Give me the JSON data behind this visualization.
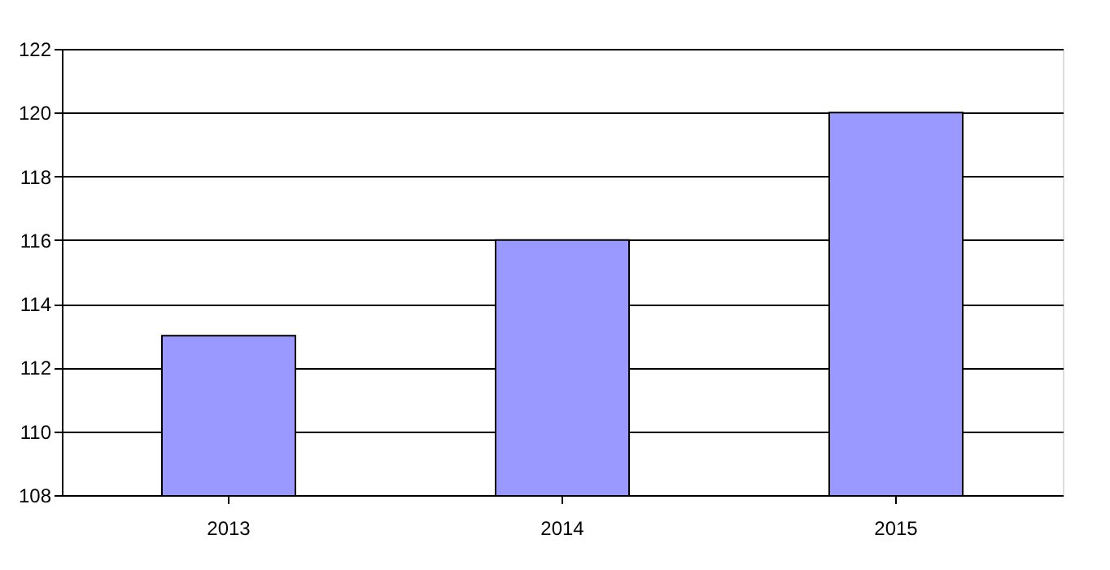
{
  "chart_data": {
    "type": "bar",
    "categories": [
      "2013",
      "2014",
      "2015"
    ],
    "values": [
      113,
      116,
      120
    ],
    "color": "#9999ff",
    "ylim": [
      108,
      122
    ],
    "yticks": [
      108,
      110,
      112,
      114,
      116,
      118,
      120,
      122
    ],
    "grid": "y"
  }
}
